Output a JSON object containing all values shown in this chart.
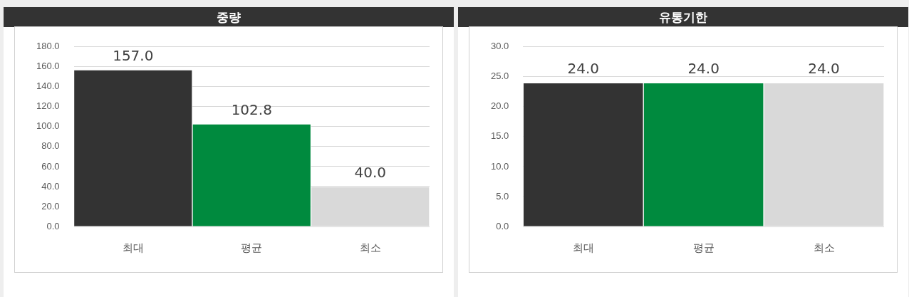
{
  "chart_data": [
    {
      "type": "bar",
      "title": "중량",
      "categories": [
        "최대",
        "평균",
        "최소"
      ],
      "values": [
        157.0,
        102.8,
        40.0
      ],
      "colors": [
        "#333333",
        "#008a3e",
        "#d9d9d9"
      ],
      "value_labels": [
        "157.0",
        "102.8",
        "40.0"
      ],
      "ylim": [
        0,
        180
      ],
      "yticks": [
        {
          "value": 0,
          "label": "0.0"
        },
        {
          "value": 20,
          "label": "20.0"
        },
        {
          "value": 40,
          "label": "40.0"
        },
        {
          "value": 60,
          "label": "60.0"
        },
        {
          "value": 80,
          "label": "80.0"
        },
        {
          "value": 100,
          "label": "100.0"
        },
        {
          "value": 120,
          "label": "120.0"
        },
        {
          "value": 140,
          "label": "140.0"
        },
        {
          "value": 160,
          "label": "160.0"
        },
        {
          "value": 180,
          "label": "180.0"
        }
      ],
      "grid": "y",
      "legend": false
    },
    {
      "type": "bar",
      "title": "유통기한",
      "categories": [
        "최대",
        "평균",
        "최소"
      ],
      "values": [
        24.0,
        24.0,
        24.0
      ],
      "colors": [
        "#333333",
        "#008a3e",
        "#d9d9d9"
      ],
      "value_labels": [
        "24.0",
        "24.0",
        "24.0"
      ],
      "ylim": [
        0,
        30
      ],
      "yticks": [
        {
          "value": 0,
          "label": "0.0"
        },
        {
          "value": 5,
          "label": "5.0"
        },
        {
          "value": 10,
          "label": "10.0"
        },
        {
          "value": 15,
          "label": "15.0"
        },
        {
          "value": 20,
          "label": "20.0"
        },
        {
          "value": 25,
          "label": "25.0"
        },
        {
          "value": 30,
          "label": "30.0"
        }
      ],
      "grid": "y",
      "legend": false
    }
  ]
}
